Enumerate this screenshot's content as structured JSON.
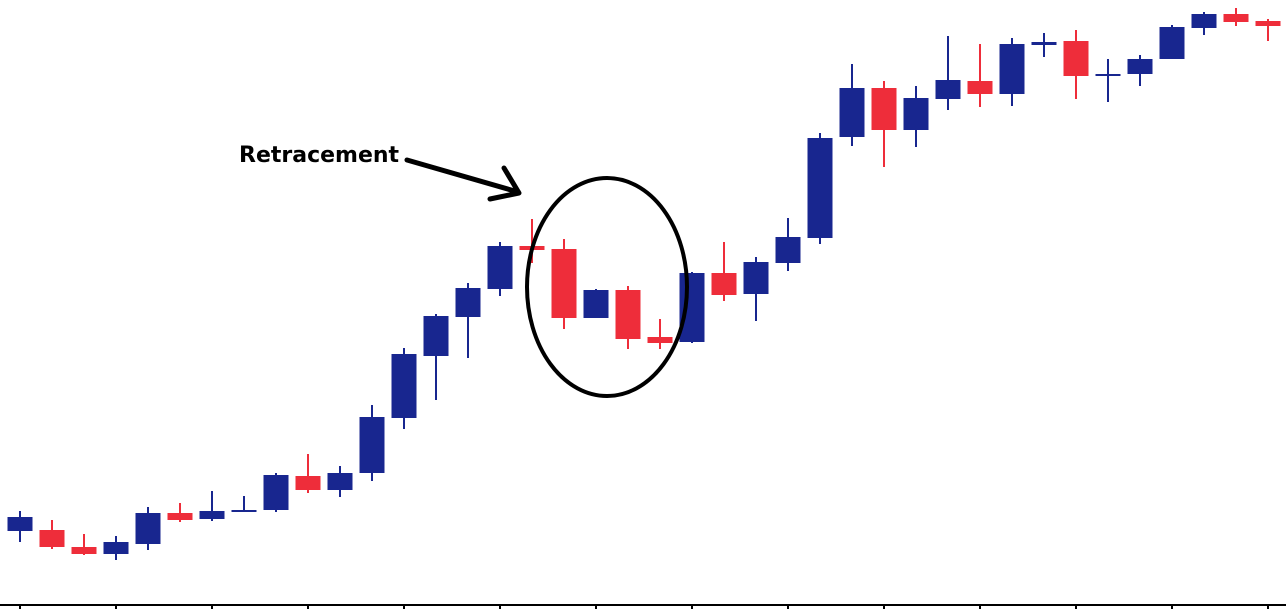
{
  "chart_data": {
    "type": "candlestick",
    "title": "",
    "xlabel": "",
    "ylabel": "",
    "ylim": [
      0,
      609
    ],
    "grid": false,
    "colors": {
      "bullish": "#18268f",
      "bearish": "#ee2d3a",
      "annotation": "#000000"
    },
    "candles": [
      {
        "o": 78,
        "h": 98,
        "l": 67,
        "c": 92
      },
      {
        "o": 79,
        "h": 89,
        "l": 60,
        "c": 62
      },
      {
        "o": 62,
        "h": 75,
        "l": 54,
        "c": 55
      },
      {
        "o": 55,
        "h": 73,
        "l": 49,
        "c": 67
      },
      {
        "o": 65,
        "h": 102,
        "l": 59,
        "c": 96
      },
      {
        "o": 96,
        "h": 106,
        "l": 87,
        "c": 89
      },
      {
        "o": 90,
        "h": 118,
        "l": 88,
        "c": 98
      },
      {
        "o": 97,
        "h": 113,
        "l": 97,
        "c": 99
      },
      {
        "o": 99,
        "h": 136,
        "l": 97,
        "c": 134
      },
      {
        "o": 133,
        "h": 155,
        "l": 116,
        "c": 119
      },
      {
        "o": 119,
        "h": 143,
        "l": 112,
        "c": 136
      },
      {
        "o": 136,
        "h": 204,
        "l": 128,
        "c": 192
      },
      {
        "o": 191,
        "h": 261,
        "l": 180,
        "c": 255
      },
      {
        "o": 253,
        "h": 295,
        "l": 209,
        "c": 293
      },
      {
        "o": 292,
        "h": 326,
        "l": 251,
        "c": 321
      },
      {
        "o": 320,
        "h": 367,
        "l": 313,
        "c": 363
      },
      {
        "o": 363,
        "h": 390,
        "l": 346,
        "c": 359
      },
      {
        "o": 360,
        "h": 370,
        "l": 280,
        "c": 291
      },
      {
        "o": 291,
        "h": 320,
        "l": 291,
        "c": 319
      },
      {
        "o": 319,
        "h": 323,
        "l": 260,
        "c": 270
      },
      {
        "o": 272,
        "h": 290,
        "l": 260,
        "c": 266
      },
      {
        "o": 267,
        "h": 337,
        "l": 266,
        "c": 336
      },
      {
        "o": 336,
        "h": 367,
        "l": 308,
        "c": 314
      },
      {
        "o": 315,
        "h": 352,
        "l": 288,
        "c": 347
      },
      {
        "o": 346,
        "h": 391,
        "l": 338,
        "c": 372
      },
      {
        "o": 371,
        "h": 476,
        "l": 365,
        "c": 471
      },
      {
        "o": 472,
        "h": 545,
        "l": 463,
        "c": 521
      },
      {
        "o": 521,
        "h": 528,
        "l": 442,
        "c": 479
      },
      {
        "o": 479,
        "h": 523,
        "l": 462,
        "c": 511
      },
      {
        "o": 510,
        "h": 573,
        "l": 499,
        "c": 529
      },
      {
        "o": 528,
        "h": 565,
        "l": 502,
        "c": 515
      },
      {
        "o": 515,
        "h": 571,
        "l": 503,
        "c": 565
      },
      {
        "o": 564,
        "h": 576,
        "l": 552,
        "c": 567
      },
      {
        "o": 568,
        "h": 579,
        "l": 510,
        "c": 533
      },
      {
        "o": 533,
        "h": 550,
        "l": 507,
        "c": 535
      },
      {
        "o": 535,
        "h": 554,
        "l": 523,
        "c": 550
      },
      {
        "o": 550,
        "h": 584,
        "l": 550,
        "c": 582
      },
      {
        "o": 581,
        "h": 597,
        "l": 574,
        "c": 595
      },
      {
        "o": 595,
        "h": 601,
        "l": 583,
        "c": 587
      },
      {
        "o": 588,
        "h": 590,
        "l": 568,
        "c": 583
      }
    ],
    "annotations": [
      {
        "text": "Retracement",
        "shape": "arrow-and-ellipse",
        "target_candles": [
          16,
          21
        ]
      }
    ]
  }
}
